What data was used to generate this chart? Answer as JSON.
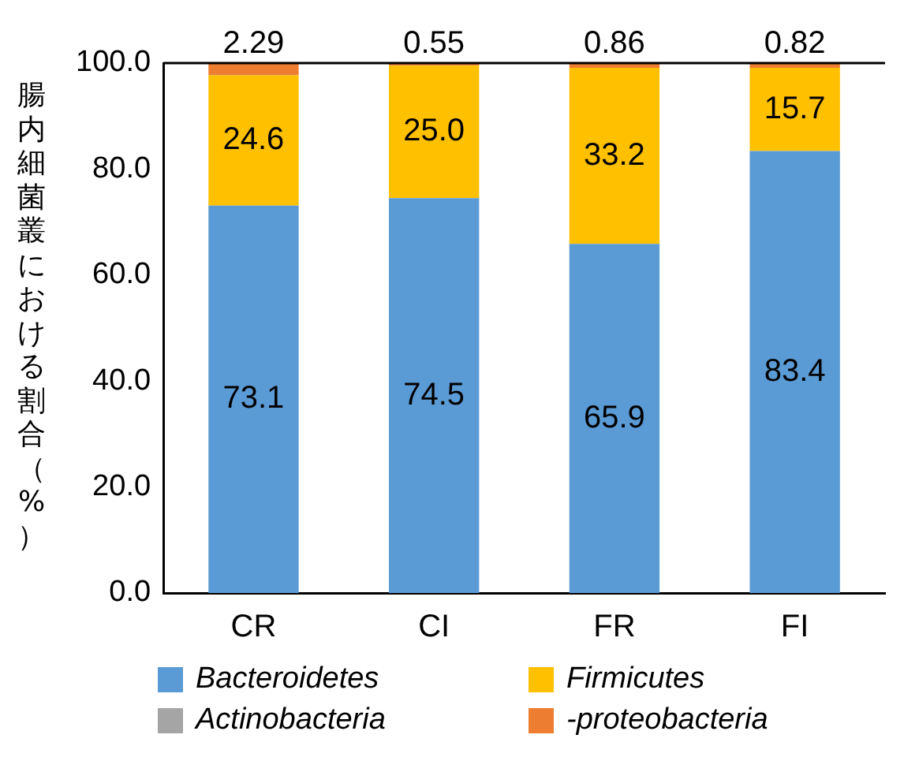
{
  "chart_data": {
    "type": "bar",
    "stacked": true,
    "ylabel": "腸内細菌叢における割合（%）",
    "categories": [
      "CR",
      "CI",
      "FR",
      "FI"
    ],
    "ylim": [
      0,
      100
    ],
    "yticks": [
      {
        "value": 0,
        "label": "0.0"
      },
      {
        "value": 20,
        "label": "20.0"
      },
      {
        "value": 40,
        "label": "40.0"
      },
      {
        "value": 60,
        "label": "60.0"
      },
      {
        "value": 80,
        "label": "80.0"
      },
      {
        "value": 100,
        "label": "100.0"
      }
    ],
    "grid": false,
    "legend": "bottom",
    "series": [
      {
        "name": "Bacteroidetes",
        "color": "#5b9bd5",
        "values": [
          73.1,
          74.5,
          65.9,
          83.4
        ],
        "value_labels": [
          "73.1",
          "74.5",
          "65.9",
          "83.4"
        ]
      },
      {
        "name": "Firmicutes",
        "color": "#ffc000",
        "values": [
          24.6,
          25.0,
          33.2,
          15.7
        ],
        "value_labels": [
          "24.6",
          "25.0",
          "33.2",
          "15.7"
        ]
      },
      {
        "name": "Actinobacteria",
        "color": "#a5a5a5",
        "values": [
          0,
          0,
          0,
          0
        ]
      },
      {
        "name": "-proteobacteria",
        "color": "#ed7d31",
        "values": [
          2.29,
          0.55,
          0.86,
          0.82
        ],
        "value_labels": [
          "2.29",
          "0.55",
          "0.86",
          "0.82"
        ]
      }
    ]
  }
}
